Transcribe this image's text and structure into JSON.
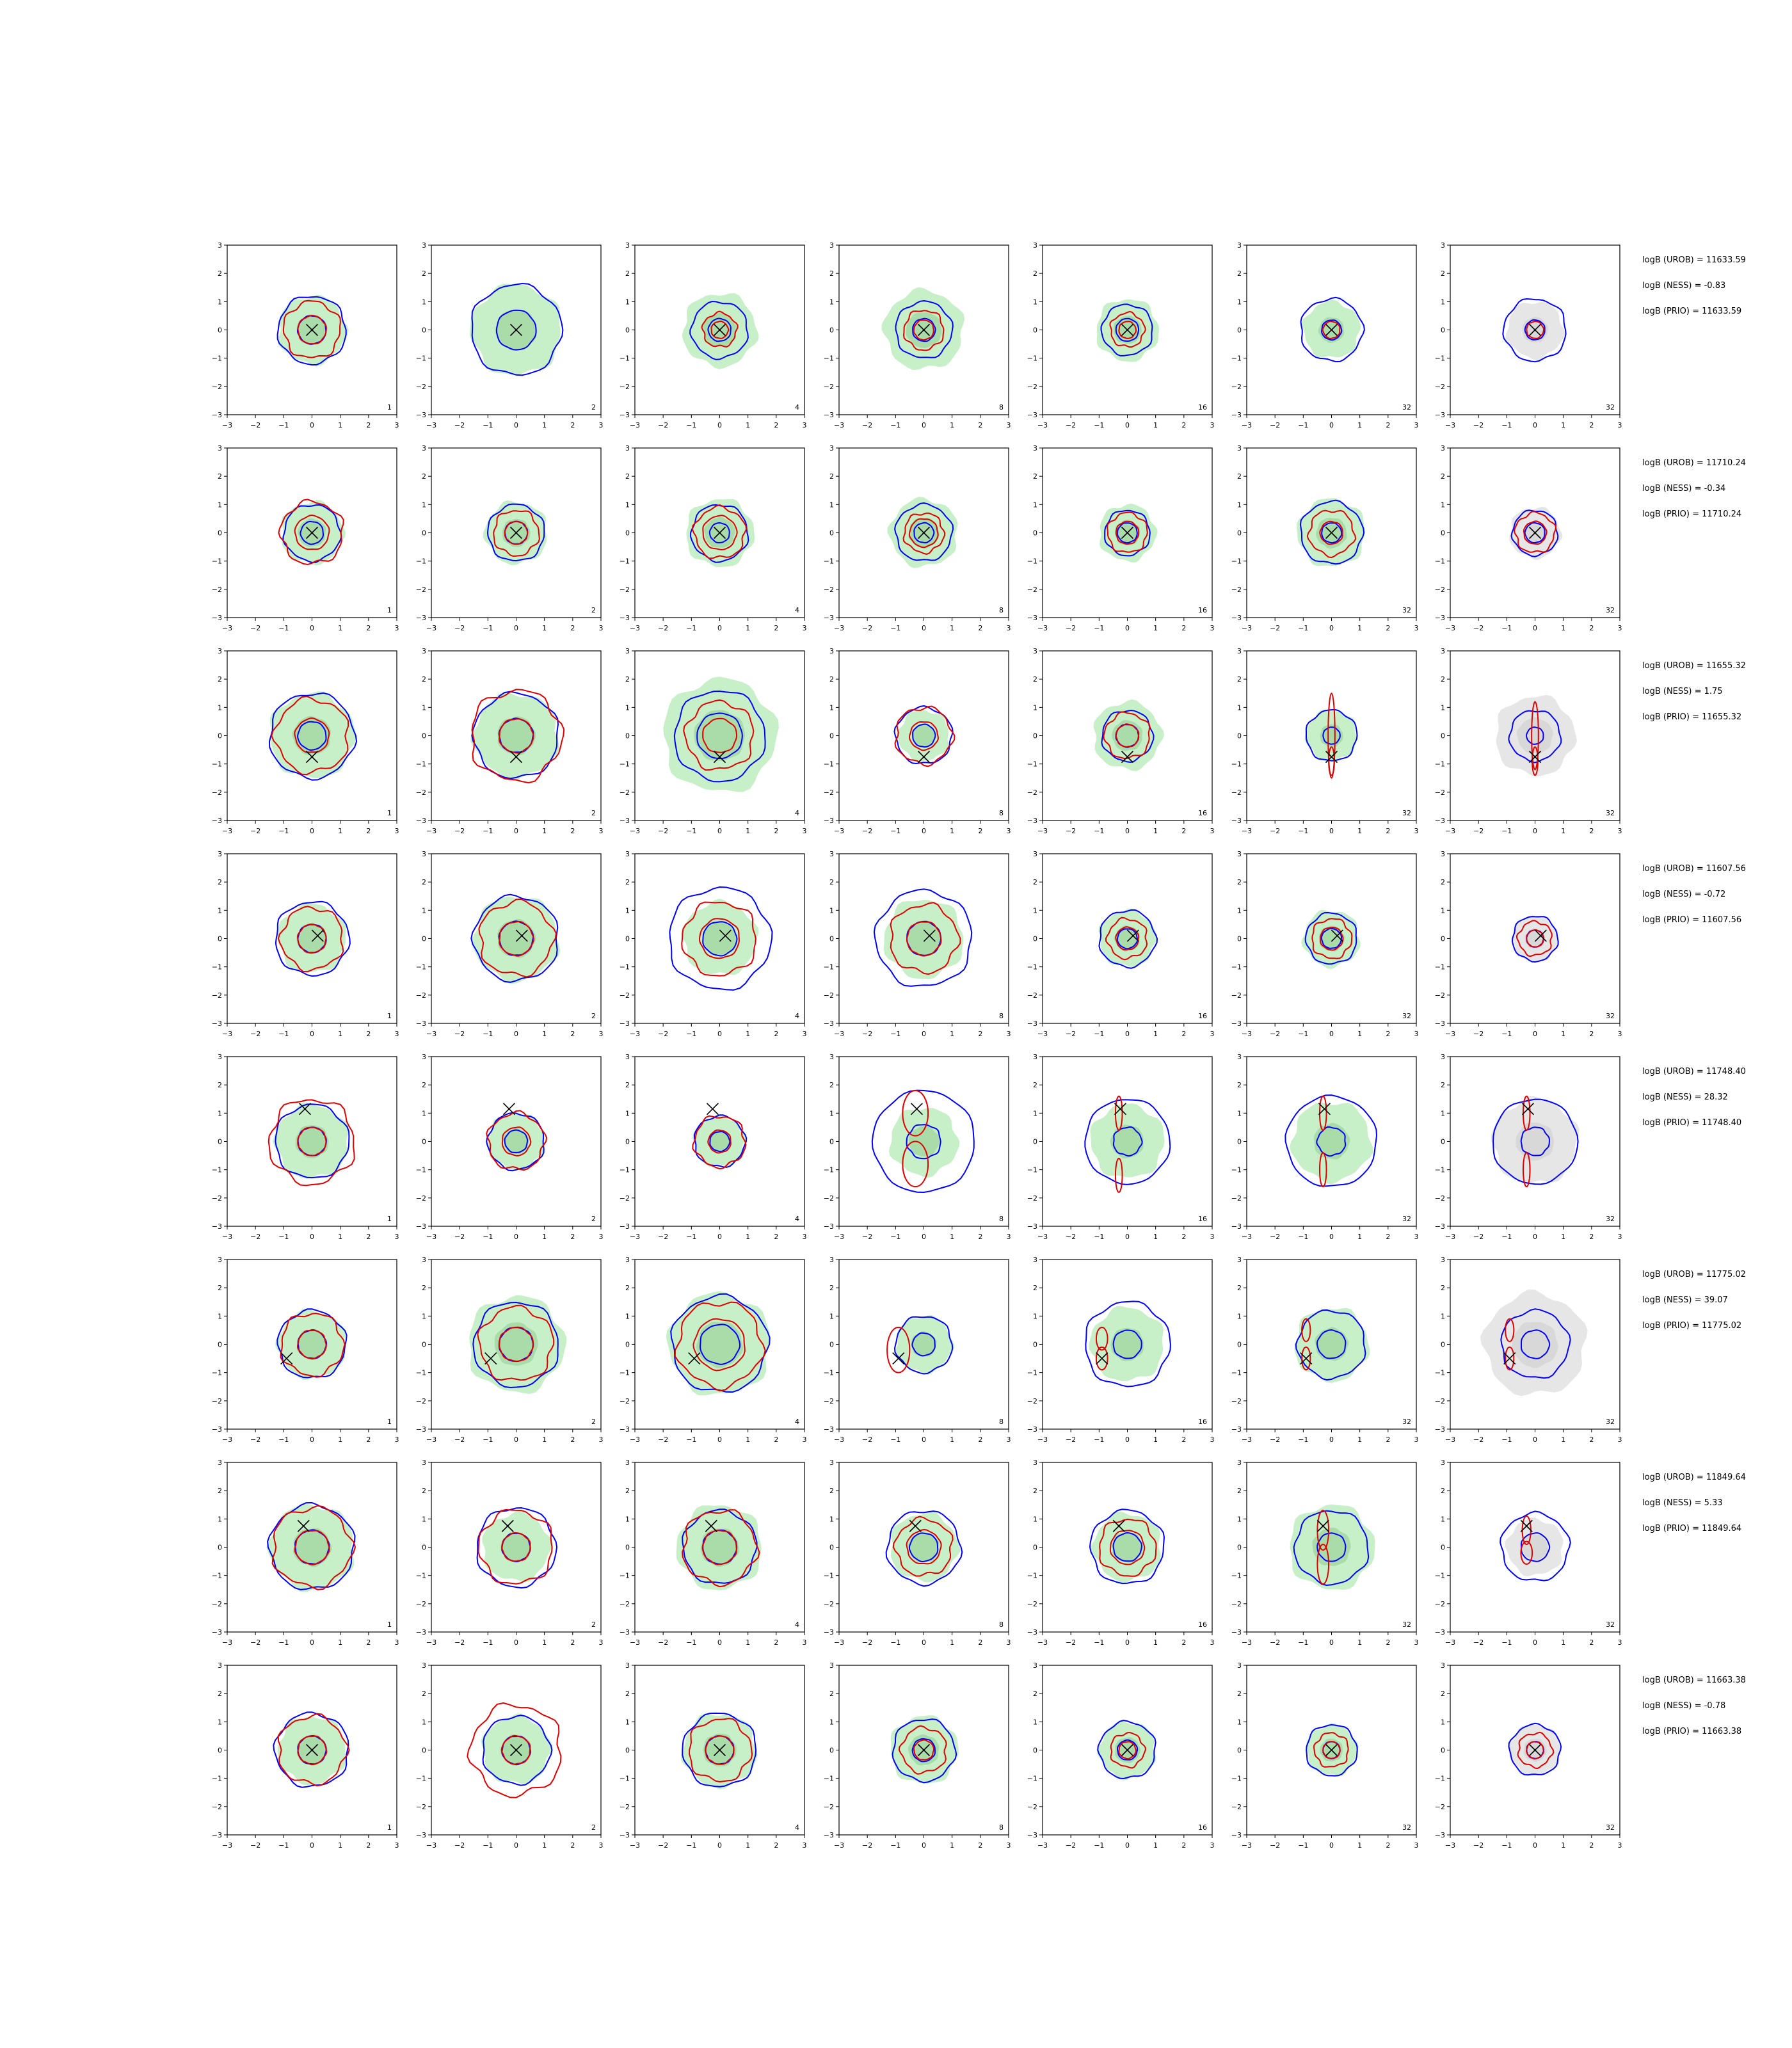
{
  "colors": {
    "fill_green": "#c8f0c8",
    "fill_green_dark": "#a9dca9",
    "fill_gray": "#e6e6e6",
    "blue": "#0000ff",
    "red": "#e00000",
    "marker": "#000000"
  },
  "chart_data": {
    "type": "contour",
    "grid": {
      "rows": 8,
      "cols": 7
    },
    "axes": {
      "xlim": [
        -3,
        3
      ],
      "ylim": [
        -3,
        3
      ],
      "ticks": [
        -3,
        -2,
        -1,
        0,
        1,
        2,
        3
      ]
    },
    "column_labels": [
      "1",
      "2",
      "4",
      "8",
      "16",
      "32",
      "32"
    ],
    "panel_backgrounds": [
      "green",
      "green",
      "green",
      "green",
      "green",
      "green",
      "gray"
    ],
    "rows": [
      {
        "marker": [
          0,
          0
        ],
        "stats": {
          "urob": "logB (UROB) = 11633.59",
          "ness": "logB (NESS) = -0.83",
          "prio": "logB (PRIO) = 11633.59"
        },
        "bg_radius": [
          1.2,
          1.6,
          1.3,
          1.4,
          1.1,
          1.0,
          1.0
        ],
        "blue_radii": [
          [
            0.5,
            1.2
          ],
          [
            0.7,
            1.6
          ],
          [
            0.4,
            1.0
          ],
          [
            0.4,
            1.0
          ],
          [
            0.4,
            0.9
          ],
          [
            0.35,
            1.1
          ],
          [
            0.35,
            1.1
          ]
        ],
        "red_radii": [
          [
            0.5,
            1.0
          ],
          [],
          [
            0.3,
            0.6
          ],
          [
            0.35,
            0.7
          ],
          [
            0.3,
            0.6
          ],
          [
            0.3
          ],
          [
            0.3
          ]
        ]
      },
      {
        "marker": [
          0,
          0
        ],
        "stats": {
          "urob": "logB (UROB) = 11710.24",
          "ness": "logB (NESS) = -0.34",
          "prio": "logB (PRIO) = 11710.24"
        },
        "bg_radius": [
          1.1,
          1.1,
          1.2,
          1.2,
          1.0,
          1.2,
          0.9
        ],
        "blue_radii": [
          [
            0.4,
            1.0
          ],
          [
            0.4,
            1.0
          ],
          [
            0.35,
            1.0
          ],
          [
            0.35,
            1.0
          ],
          [
            0.35,
            0.8
          ],
          [
            0.35,
            1.1
          ],
          [
            0.35,
            0.8
          ]
        ],
        "red_radii": [
          [
            0.6,
            1.1
          ],
          [
            0.4,
            0.8
          ],
          [
            0.6,
            0.9
          ],
          [
            0.5,
            0.7
          ],
          [
            0.4,
            0.7
          ],
          [
            0.4,
            0.8
          ],
          [
            0.4,
            0.7
          ]
        ]
      },
      {
        "marker": [
          0,
          -0.75
        ],
        "stats": {
          "urob": "logB (UROB) = 11655.32",
          "ness": "logB (NESS) = 1.75",
          "prio": "logB (PRIO) = 11655.32"
        },
        "bg_radius": [
          1.5,
          1.5,
          2.0,
          0.9,
          1.2,
          0.9,
          1.4
        ],
        "blue_radii": [
          [
            0.5,
            1.5
          ],
          [
            0.6,
            1.5
          ],
          [
            0.8,
            1.6
          ],
          [
            0.4,
            1.0
          ],
          [
            0.4,
            0.9
          ],
          [
            0.3,
            0.9
          ],
          [
            0.3,
            0.9
          ]
        ],
        "red_radii": [
          [
            0.6,
            1.3
          ],
          [
            0.6,
            1.6
          ],
          [
            0.6,
            1.2
          ],
          [
            0.5,
            1.0
          ],
          [
            0.4,
            0.8
          ],
          [],
          []
        ],
        "red_ellipses": [
          [],
          [],
          [],
          [],
          [],
          [
            [
              0,
              0,
              0.12,
              1.5
            ],
            [
              0,
              -0.9,
              0.1,
              0.5
            ]
          ],
          [
            [
              0,
              0,
              0.12,
              1.2
            ],
            [
              0,
              -0.9,
              0.1,
              0.5
            ]
          ]
        ]
      },
      {
        "marker": [
          0.2,
          0.1
        ],
        "stats": {
          "urob": "logB (UROB) = 11607.56",
          "ness": "logB (NESS) = -0.72",
          "prio": "logB (PRIO) = 11607.56"
        },
        "bg_radius": [
          1.2,
          1.5,
          1.3,
          1.4,
          1.0,
          1.0,
          0.8
        ],
        "blue_radii": [
          [
            0.5,
            1.3
          ],
          [
            0.6,
            1.5
          ],
          [
            0.6,
            1.8
          ],
          [
            0.6,
            1.7
          ],
          [
            0.35,
            1.0
          ],
          [
            0.35,
            0.9
          ],
          [
            0.3,
            0.8
          ]
        ],
        "red_radii": [
          [
            0.5,
            1.1
          ],
          [
            0.6,
            1.3
          ],
          [
            0.7,
            1.3
          ],
          [
            0.6,
            1.2
          ],
          [
            0.4,
            0.7
          ],
          [
            0.4,
            0.7
          ],
          [
            0.3,
            0.6
          ]
        ]
      },
      {
        "marker": [
          -0.25,
          1.15
        ],
        "stats": {
          "urob": "logB (UROB) = 11748.40",
          "ness": "logB (NESS) = 28.32",
          "prio": "logB (PRIO) = 11748.40"
        },
        "bg_radius": [
          1.3,
          1.0,
          0.9,
          1.2,
          1.3,
          1.4,
          1.5
        ],
        "blue_radii": [
          [
            0.5,
            1.3
          ],
          [
            0.4,
            1.0
          ],
          [
            0.35,
            0.9
          ],
          [
            1.8,
            0.6
          ],
          [
            1.5,
            0.5
          ],
          [
            1.6,
            0.5
          ],
          [
            1.5,
            0.5
          ]
        ],
        "red_radii": [
          [
            0.5,
            1.5
          ],
          [
            0.5,
            1.0
          ],
          [
            0.4,
            0.9
          ],
          [],
          [],
          [],
          []
        ],
        "red_ellipses": [
          [],
          [],
          [],
          [
            [
              -0.3,
              1.0,
              0.45,
              0.8
            ],
            [
              -0.3,
              -0.8,
              0.45,
              0.8
            ]
          ],
          [
            [
              -0.3,
              1.0,
              0.12,
              0.6
            ],
            [
              -0.3,
              -1.2,
              0.12,
              0.6
            ]
          ],
          [
            [
              -0.3,
              1.0,
              0.12,
              0.6
            ],
            [
              -0.3,
              -1.0,
              0.12,
              0.6
            ]
          ],
          [
            [
              -0.3,
              1.0,
              0.12,
              0.6
            ],
            [
              -0.3,
              -1.0,
              0.12,
              0.6
            ]
          ]
        ]
      },
      {
        "marker": [
          -0.9,
          -0.5
        ],
        "stats": {
          "urob": "logB (UROB) = 11775.02",
          "ness": "logB (NESS) = 39.07",
          "prio": "logB (PRIO) = 11775.02"
        },
        "bg_radius": [
          1.2,
          1.7,
          1.8,
          1.0,
          1.3,
          1.3,
          1.8
        ],
        "blue_radii": [
          [
            0.5,
            1.2
          ],
          [
            0.6,
            1.5
          ],
          [
            0.7,
            1.7
          ],
          [
            0.4,
            1.0
          ],
          [
            0.5,
            1.5
          ],
          [
            0.5,
            1.2
          ],
          [
            0.5,
            1.2
          ]
        ],
        "red_radii": [
          [
            0.5,
            1.1
          ],
          [
            0.6,
            1.3
          ],
          [
            0.9,
            1.5
          ],
          [],
          [],
          [],
          []
        ],
        "red_ellipses": [
          [],
          [],
          [],
          [
            [
              -0.9,
              -0.2,
              0.4,
              0.8
            ]
          ],
          [
            [
              -0.9,
              0.2,
              0.2,
              0.4
            ],
            [
              -0.9,
              -0.5,
              0.2,
              0.4
            ]
          ],
          [
            [
              -0.9,
              0.5,
              0.15,
              0.4
            ],
            [
              -0.9,
              -0.5,
              0.15,
              0.4
            ]
          ],
          [
            [
              -0.9,
              0.5,
              0.15,
              0.4
            ],
            [
              -0.9,
              -0.5,
              0.15,
              0.4
            ]
          ]
        ]
      },
      {
        "marker": [
          -0.3,
          0.75
        ],
        "stats": {
          "urob": "logB (UROB) = 11849.64",
          "ness": "logB (NESS) = 5.33",
          "prio": "logB (PRIO) = 11849.64"
        },
        "bg_radius": [
          1.5,
          1.2,
          1.5,
          1.2,
          1.2,
          1.5,
          1.0
        ],
        "blue_radii": [
          [
            0.6,
            1.5
          ],
          [
            0.5,
            1.4
          ],
          [
            0.6,
            1.3
          ],
          [
            0.5,
            1.3
          ],
          [
            0.5,
            1.3
          ],
          [
            0.5,
            1.3
          ],
          [
            0.5,
            1.2
          ]
        ],
        "red_radii": [
          [
            0.6,
            1.4
          ],
          [
            0.5,
            1.3
          ],
          [
            0.6,
            1.3
          ],
          [
            0.6,
            1.0
          ],
          [
            0.6,
            1.0
          ],
          [],
          []
        ],
        "red_ellipses": [
          [],
          [],
          [],
          [],
          [],
          [
            [
              -0.3,
              0.6,
              0.2,
              0.7
            ],
            [
              -0.3,
              -0.6,
              0.2,
              0.7
            ]
          ],
          [
            [
              -0.3,
              0.6,
              0.15,
              0.5
            ],
            [
              -0.3,
              -0.2,
              0.2,
              0.4
            ]
          ]
        ]
      },
      {
        "marker": [
          0,
          0
        ],
        "stats": {
          "urob": "logB (UROB) = 11663.38",
          "ness": "logB (NESS) = -0.78",
          "prio": "logB (PRIO) = 11663.38"
        },
        "bg_radius": [
          1.2,
          1.2,
          1.3,
          1.2,
          1.0,
          0.9,
          0.9
        ],
        "blue_radii": [
          [
            0.5,
            1.3
          ],
          [
            0.5,
            1.2
          ],
          [
            0.5,
            1.3
          ],
          [
            0.4,
            1.1
          ],
          [
            0.35,
            1.0
          ],
          [
            0.3,
            0.9
          ],
          [
            0.3,
            0.9
          ]
        ],
        "red_radii": [
          [
            0.5,
            1.2
          ],
          [
            0.5,
            1.6
          ],
          [
            0.5,
            1.1
          ],
          [
            0.35,
            0.8
          ],
          [
            0.3,
            0.6
          ],
          [
            0.3,
            0.6
          ],
          [
            0.3,
            0.6
          ]
        ]
      }
    ]
  }
}
